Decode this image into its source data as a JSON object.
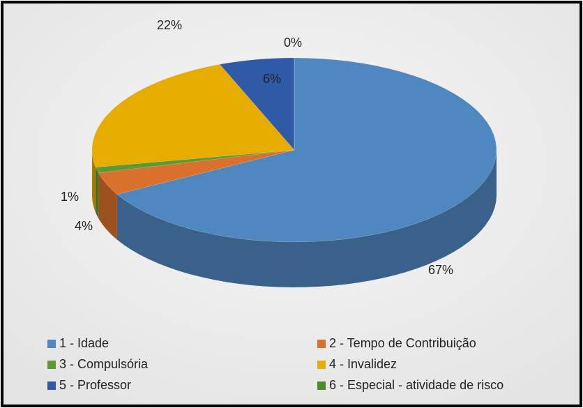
{
  "chart_data": {
    "type": "pie",
    "categories": [
      "1 - Idade",
      "2 - Tempo de Contribuição",
      "3 - Compulsória",
      "4 - Invalidez",
      "5 - Professor",
      "6 -  Especial - atividade de risco"
    ],
    "values": [
      67,
      4,
      1,
      22,
      6,
      0
    ],
    "value_labels": [
      "67%",
      "4%",
      "1%",
      "22%",
      "6%",
      "0%"
    ],
    "colors": [
      "#4f87c0",
      "#d9702b",
      "#5e9a34",
      "#e6ac00",
      "#2f5aa8",
      "#4e8a2a"
    ],
    "legend": "bottom"
  }
}
